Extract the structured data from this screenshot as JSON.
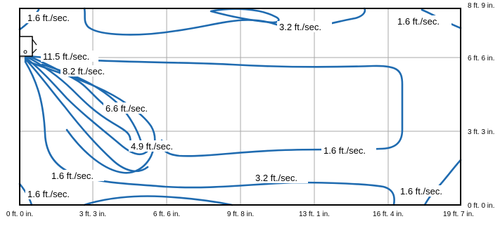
{
  "chart_data": {
    "type": "contour",
    "title": "",
    "x_ticks": [
      "0 ft. 0 in.",
      "3 ft. 3 in.",
      "6 ft. 6 in.",
      "9 ft. 8 in.",
      "13 ft. 1 in.",
      "16 ft. 4 in.",
      "19 ft. 7 in."
    ],
    "y_ticks": [
      "8 ft. 9 in.",
      "6 ft. 6 in.",
      "3 ft. 3 in.",
      "0 ft. 0 in."
    ],
    "contour_labels": [
      "1.6 ft./sec.",
      "3.2 ft./sec.",
      "1.6 ft./sec.",
      "11.5 ft./sec.",
      "8.2 ft./sec.",
      "6.6 ft./sec.",
      "4.9 ft./sec.",
      "1.6 ft./sec.",
      "3.2 ft./sec.",
      "1.6 ft./sec.",
      "1.6 ft./sec.",
      "1.6 ft./sec."
    ],
    "line_color": "#1f6bb0",
    "grid": true
  }
}
